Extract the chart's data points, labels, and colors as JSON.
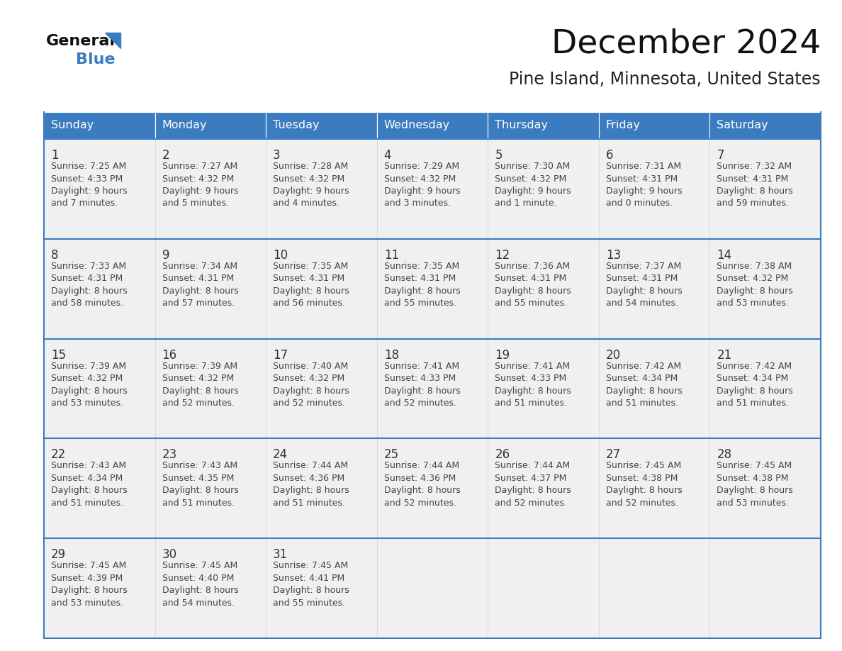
{
  "title": "December 2024",
  "subtitle": "Pine Island, Minnesota, United States",
  "header_color": "#3b7bbf",
  "header_text_color": "#ffffff",
  "cell_bg_color": "#f0f0f0",
  "day_number_color": "#333333",
  "text_color": "#444444",
  "border_color": "#3b7bbf",
  "days_of_week": [
    "Sunday",
    "Monday",
    "Tuesday",
    "Wednesday",
    "Thursday",
    "Friday",
    "Saturday"
  ],
  "weeks": [
    [
      {
        "day": "1",
        "sunrise": "7:25 AM",
        "sunset": "4:33 PM",
        "daylight1": "Daylight: 9 hours",
        "daylight2": "and 7 minutes."
      },
      {
        "day": "2",
        "sunrise": "7:27 AM",
        "sunset": "4:32 PM",
        "daylight1": "Daylight: 9 hours",
        "daylight2": "and 5 minutes."
      },
      {
        "day": "3",
        "sunrise": "7:28 AM",
        "sunset": "4:32 PM",
        "daylight1": "Daylight: 9 hours",
        "daylight2": "and 4 minutes."
      },
      {
        "day": "4",
        "sunrise": "7:29 AM",
        "sunset": "4:32 PM",
        "daylight1": "Daylight: 9 hours",
        "daylight2": "and 3 minutes."
      },
      {
        "day": "5",
        "sunrise": "7:30 AM",
        "sunset": "4:32 PM",
        "daylight1": "Daylight: 9 hours",
        "daylight2": "and 1 minute."
      },
      {
        "day": "6",
        "sunrise": "7:31 AM",
        "sunset": "4:31 PM",
        "daylight1": "Daylight: 9 hours",
        "daylight2": "and 0 minutes."
      },
      {
        "day": "7",
        "sunrise": "7:32 AM",
        "sunset": "4:31 PM",
        "daylight1": "Daylight: 8 hours",
        "daylight2": "and 59 minutes."
      }
    ],
    [
      {
        "day": "8",
        "sunrise": "7:33 AM",
        "sunset": "4:31 PM",
        "daylight1": "Daylight: 8 hours",
        "daylight2": "and 58 minutes."
      },
      {
        "day": "9",
        "sunrise": "7:34 AM",
        "sunset": "4:31 PM",
        "daylight1": "Daylight: 8 hours",
        "daylight2": "and 57 minutes."
      },
      {
        "day": "10",
        "sunrise": "7:35 AM",
        "sunset": "4:31 PM",
        "daylight1": "Daylight: 8 hours",
        "daylight2": "and 56 minutes."
      },
      {
        "day": "11",
        "sunrise": "7:35 AM",
        "sunset": "4:31 PM",
        "daylight1": "Daylight: 8 hours",
        "daylight2": "and 55 minutes."
      },
      {
        "day": "12",
        "sunrise": "7:36 AM",
        "sunset": "4:31 PM",
        "daylight1": "Daylight: 8 hours",
        "daylight2": "and 55 minutes."
      },
      {
        "day": "13",
        "sunrise": "7:37 AM",
        "sunset": "4:31 PM",
        "daylight1": "Daylight: 8 hours",
        "daylight2": "and 54 minutes."
      },
      {
        "day": "14",
        "sunrise": "7:38 AM",
        "sunset": "4:32 PM",
        "daylight1": "Daylight: 8 hours",
        "daylight2": "and 53 minutes."
      }
    ],
    [
      {
        "day": "15",
        "sunrise": "7:39 AM",
        "sunset": "4:32 PM",
        "daylight1": "Daylight: 8 hours",
        "daylight2": "and 53 minutes."
      },
      {
        "day": "16",
        "sunrise": "7:39 AM",
        "sunset": "4:32 PM",
        "daylight1": "Daylight: 8 hours",
        "daylight2": "and 52 minutes."
      },
      {
        "day": "17",
        "sunrise": "7:40 AM",
        "sunset": "4:32 PM",
        "daylight1": "Daylight: 8 hours",
        "daylight2": "and 52 minutes."
      },
      {
        "day": "18",
        "sunrise": "7:41 AM",
        "sunset": "4:33 PM",
        "daylight1": "Daylight: 8 hours",
        "daylight2": "and 52 minutes."
      },
      {
        "day": "19",
        "sunrise": "7:41 AM",
        "sunset": "4:33 PM",
        "daylight1": "Daylight: 8 hours",
        "daylight2": "and 51 minutes."
      },
      {
        "day": "20",
        "sunrise": "7:42 AM",
        "sunset": "4:34 PM",
        "daylight1": "Daylight: 8 hours",
        "daylight2": "and 51 minutes."
      },
      {
        "day": "21",
        "sunrise": "7:42 AM",
        "sunset": "4:34 PM",
        "daylight1": "Daylight: 8 hours",
        "daylight2": "and 51 minutes."
      }
    ],
    [
      {
        "day": "22",
        "sunrise": "7:43 AM",
        "sunset": "4:34 PM",
        "daylight1": "Daylight: 8 hours",
        "daylight2": "and 51 minutes."
      },
      {
        "day": "23",
        "sunrise": "7:43 AM",
        "sunset": "4:35 PM",
        "daylight1": "Daylight: 8 hours",
        "daylight2": "and 51 minutes."
      },
      {
        "day": "24",
        "sunrise": "7:44 AM",
        "sunset": "4:36 PM",
        "daylight1": "Daylight: 8 hours",
        "daylight2": "and 51 minutes."
      },
      {
        "day": "25",
        "sunrise": "7:44 AM",
        "sunset": "4:36 PM",
        "daylight1": "Daylight: 8 hours",
        "daylight2": "and 52 minutes."
      },
      {
        "day": "26",
        "sunrise": "7:44 AM",
        "sunset": "4:37 PM",
        "daylight1": "Daylight: 8 hours",
        "daylight2": "and 52 minutes."
      },
      {
        "day": "27",
        "sunrise": "7:45 AM",
        "sunset": "4:38 PM",
        "daylight1": "Daylight: 8 hours",
        "daylight2": "and 52 minutes."
      },
      {
        "day": "28",
        "sunrise": "7:45 AM",
        "sunset": "4:38 PM",
        "daylight1": "Daylight: 8 hours",
        "daylight2": "and 53 minutes."
      }
    ],
    [
      {
        "day": "29",
        "sunrise": "7:45 AM",
        "sunset": "4:39 PM",
        "daylight1": "Daylight: 8 hours",
        "daylight2": "and 53 minutes."
      },
      {
        "day": "30",
        "sunrise": "7:45 AM",
        "sunset": "4:40 PM",
        "daylight1": "Daylight: 8 hours",
        "daylight2": "and 54 minutes."
      },
      {
        "day": "31",
        "sunrise": "7:45 AM",
        "sunset": "4:41 PM",
        "daylight1": "Daylight: 8 hours",
        "daylight2": "and 55 minutes."
      },
      null,
      null,
      null,
      null
    ]
  ]
}
